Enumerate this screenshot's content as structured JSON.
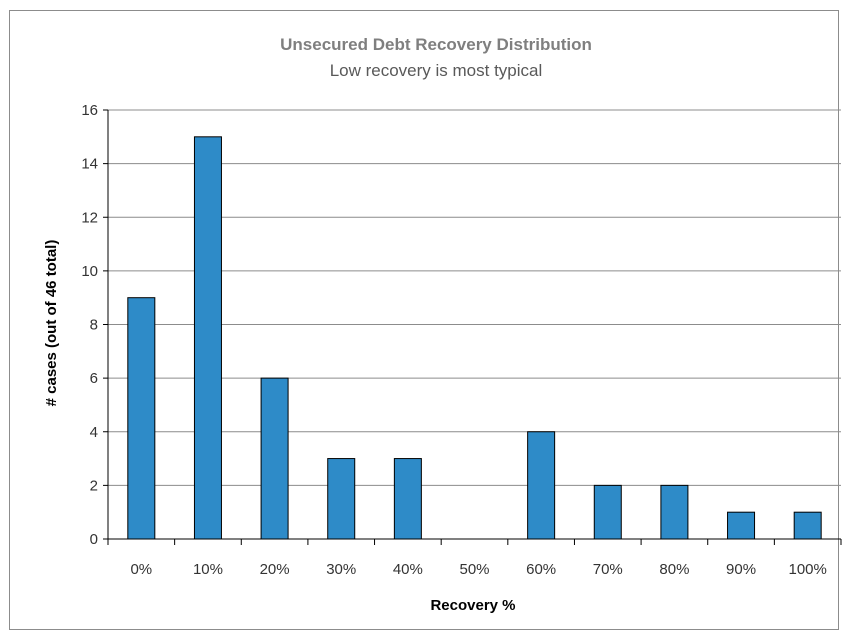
{
  "chart_data": {
    "type": "bar",
    "title": "Unsecured Debt Recovery Distribution",
    "subtitle": "Low recovery is most typical",
    "xlabel": "Recovery %",
    "ylabel": "# cases (out of 46 total)",
    "categories": [
      "0%",
      "10%",
      "20%",
      "30%",
      "40%",
      "50%",
      "60%",
      "70%",
      "80%",
      "90%",
      "100%"
    ],
    "values": [
      9,
      15,
      6,
      3,
      3,
      0,
      4,
      2,
      2,
      1,
      1
    ],
    "ylim": [
      0,
      16
    ],
    "yticks": [
      0,
      2,
      4,
      6,
      8,
      10,
      12,
      14,
      16
    ],
    "grid": true,
    "legend": "none",
    "colors": {
      "bar_fill": "#2e8bc8",
      "bar_stroke": "#000000",
      "grid": "#8c8c8c",
      "frame": "#8c8c8c"
    }
  }
}
